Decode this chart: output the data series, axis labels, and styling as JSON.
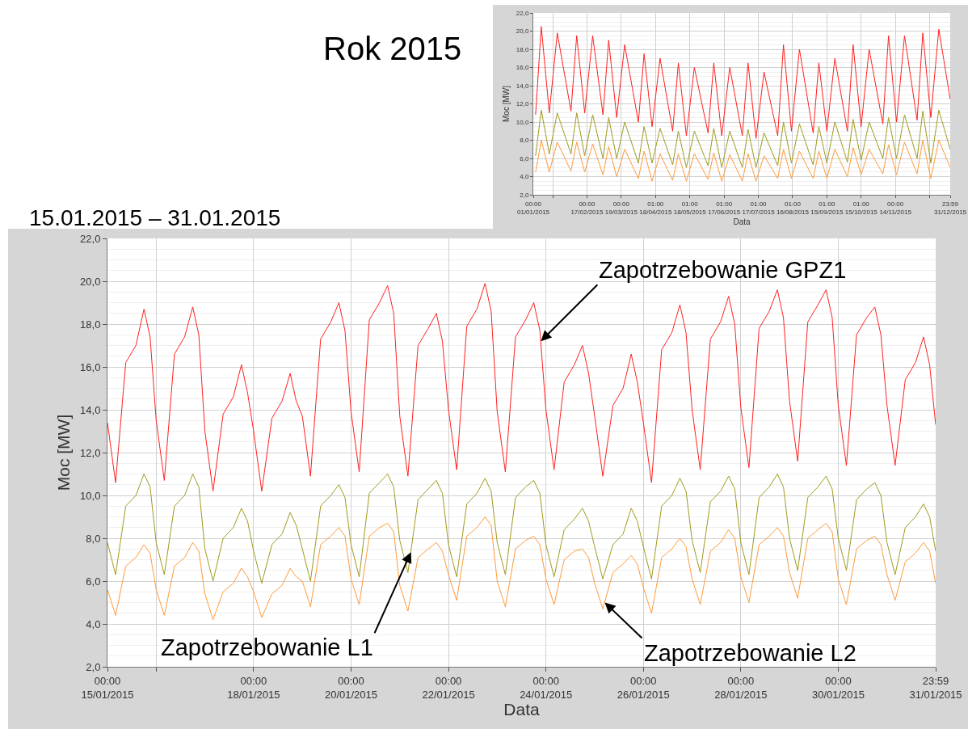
{
  "chart_data": [
    {
      "type": "line",
      "title": "Rok 2015",
      "xlabel": "Data",
      "ylabel": "Moc [MW]",
      "grid": true,
      "marker": "none",
      "line_style": "solid",
      "xlim": [
        "2015-01-01",
        "2015-12-31T23:59"
      ],
      "xticks": [
        {
          "value": "2015-01-01",
          "label": "00:00\n01/01/2015"
        },
        {
          "value": "2015-01-18",
          "label": null
        },
        {
          "value": "2015-02-17",
          "label": "00:00\n17/02/2015"
        },
        {
          "value": "2015-03-19",
          "label": "00:00\n19/03/2015"
        },
        {
          "value": "2015-04-18T01:00",
          "label": "01:00\n18/04/2015"
        },
        {
          "value": "2015-05-18T01:00",
          "label": "01:00\n18/05/2015"
        },
        {
          "value": "2015-06-17T01:00",
          "label": "01:00\n17/06/2015"
        },
        {
          "value": "2015-07-17T01:00",
          "label": "01:00\n17/07/2015"
        },
        {
          "value": "2015-08-16T01:00",
          "label": "01:00\n16/08/2015"
        },
        {
          "value": "2015-09-15T01:00",
          "label": "01:00\n15/09/2015"
        },
        {
          "value": "2015-10-15T01:00",
          "label": "01:00\n15/10/2015"
        },
        {
          "value": "2015-11-14",
          "label": "00:00\n14/11/2015"
        },
        {
          "value": "2015-12-14",
          "label": null
        },
        {
          "value": "2015-12-31T23:59",
          "label": "23:59\n31/12/2015"
        }
      ],
      "ylim": [
        2,
        22
      ],
      "yticks": [
        {
          "value": 2,
          "label": "2,0"
        },
        {
          "value": 4,
          "label": "4,0"
        },
        {
          "value": 6,
          "label": "6,0"
        },
        {
          "value": 8,
          "label": "8,0"
        },
        {
          "value": 10,
          "label": "10,0"
        },
        {
          "value": 12,
          "label": "12,0"
        },
        {
          "value": 14,
          "label": "14,0"
        },
        {
          "value": 16,
          "label": "16,0"
        },
        {
          "value": 18,
          "label": "18,0"
        },
        {
          "value": 20,
          "label": "20,0"
        },
        {
          "value": 22,
          "label": "22,0"
        }
      ],
      "x": [
        "2015-01-03",
        "2015-01-08",
        "2015-01-15",
        "2015-01-22",
        "2015-02-03",
        "2015-02-08",
        "2015-02-15",
        "2015-02-22",
        "2015-03-03",
        "2015-03-08",
        "2015-03-15",
        "2015-03-22",
        "2015-04-03",
        "2015-04-08",
        "2015-04-15",
        "2015-04-22",
        "2015-05-03",
        "2015-05-08",
        "2015-05-15",
        "2015-05-22",
        "2015-06-03",
        "2015-06-08",
        "2015-06-15",
        "2015-06-22",
        "2015-07-03",
        "2015-07-08",
        "2015-07-15",
        "2015-07-22",
        "2015-08-03",
        "2015-08-08",
        "2015-08-15",
        "2015-08-22",
        "2015-09-03",
        "2015-09-08",
        "2015-09-15",
        "2015-09-22",
        "2015-10-03",
        "2015-10-08",
        "2015-10-15",
        "2015-10-22",
        "2015-11-03",
        "2015-11-08",
        "2015-11-15",
        "2015-11-22",
        "2015-12-03",
        "2015-12-08",
        "2015-12-15",
        "2015-12-22",
        "2015-12-31T23:59"
      ],
      "series": [
        {
          "color": "#ff2020",
          "values": [
            10.8,
            20.5,
            11.0,
            19.8,
            11.2,
            19.5,
            11.0,
            19.5,
            10.8,
            19.0,
            10.5,
            18.5,
            10.0,
            17.5,
            9.5,
            17.0,
            9.0,
            16.5,
            8.5,
            16.0,
            8.8,
            16.5,
            8.5,
            16.0,
            8.5,
            16.5,
            8.2,
            15.5,
            8.5,
            18.5,
            9.0,
            18.0,
            8.8,
            16.5,
            9.0,
            17.0,
            9.0,
            18.5,
            9.5,
            18.0,
            9.8,
            19.5,
            10.0,
            19.5,
            10.2,
            19.8,
            10.5,
            20.2,
            12.5
          ]
        },
        {
          "color": "#a09a1e",
          "values": [
            6.3,
            11.3,
            6.5,
            11.0,
            6.5,
            11.0,
            6.3,
            10.8,
            6.0,
            10.5,
            6.0,
            10.0,
            5.5,
            9.5,
            5.5,
            9.3,
            5.3,
            9.0,
            5.0,
            9.0,
            5.2,
            9.3,
            5.0,
            9.0,
            5.0,
            9.2,
            5.0,
            8.8,
            5.2,
            10.0,
            5.5,
            9.8,
            5.3,
            9.5,
            5.5,
            10.0,
            5.6,
            10.3,
            5.8,
            10.0,
            6.0,
            10.5,
            6.0,
            10.8,
            6.0,
            11.2,
            5.5,
            11.3,
            7.0
          ]
        },
        {
          "color": "#ff9a3c",
          "values": [
            4.5,
            8.0,
            4.5,
            7.8,
            4.6,
            7.8,
            4.5,
            7.6,
            4.2,
            7.3,
            4.0,
            7.0,
            3.8,
            6.8,
            3.5,
            6.5,
            3.6,
            6.5,
            3.5,
            6.5,
            3.7,
            6.6,
            3.5,
            6.4,
            3.5,
            6.5,
            3.5,
            6.3,
            3.8,
            7.0,
            3.8,
            6.8,
            3.8,
            6.8,
            3.8,
            7.0,
            4.0,
            7.2,
            4.2,
            7.0,
            4.3,
            7.5,
            4.2,
            7.8,
            4.3,
            8.0,
            3.8,
            8.0,
            5.0
          ]
        }
      ]
    },
    {
      "type": "line",
      "title": "15.01.2015 – 31.01.2015",
      "xlabel": "Data",
      "ylabel": "Moc [MW]",
      "grid": true,
      "marker": "none",
      "line_style": "solid",
      "xlim": [
        "2015-01-15",
        "2015-01-31T23:59"
      ],
      "xticks": [
        {
          "value": "2015-01-15",
          "label": "00:00\n15/01/2015"
        },
        {
          "value": "2015-01-16",
          "label": null
        },
        {
          "value": "2015-01-18",
          "label": "00:00\n18/01/2015"
        },
        {
          "value": "2015-01-20",
          "label": "00:00\n20/01/2015"
        },
        {
          "value": "2015-01-22",
          "label": "00:00\n22/01/2015"
        },
        {
          "value": "2015-01-24",
          "label": "00:00\n24/01/2015"
        },
        {
          "value": "2015-01-26",
          "label": "00:00\n26/01/2015"
        },
        {
          "value": "2015-01-28",
          "label": "00:00\n28/01/2015"
        },
        {
          "value": "2015-01-30",
          "label": "00:00\n30/01/2015"
        },
        {
          "value": "2015-01-31T23:59",
          "label": "23:59\n31/01/2015"
        }
      ],
      "ylim": [
        2,
        22
      ],
      "yticks": [
        {
          "value": 2,
          "label": "2,0"
        },
        {
          "value": 4,
          "label": "4,0"
        },
        {
          "value": 6,
          "label": "6,0"
        },
        {
          "value": 8,
          "label": "8,0"
        },
        {
          "value": 10,
          "label": "10,0"
        },
        {
          "value": 12,
          "label": "12,0"
        },
        {
          "value": 14,
          "label": "14,0"
        },
        {
          "value": 16,
          "label": "16,0"
        },
        {
          "value": 18,
          "label": "18,0"
        },
        {
          "value": 20,
          "label": "20,0"
        },
        {
          "value": 22,
          "label": "22,0"
        }
      ],
      "x": [
        "2015-01-15T00:00",
        "2015-01-15T04:00",
        "2015-01-15T09:00",
        "2015-01-15T14:00",
        "2015-01-15T18:00",
        "2015-01-15T21:00",
        "2015-01-16T00:00",
        "2015-01-16T04:00",
        "2015-01-16T09:00",
        "2015-01-16T14:00",
        "2015-01-16T18:00",
        "2015-01-16T21:00",
        "2015-01-17T00:00",
        "2015-01-17T04:00",
        "2015-01-17T09:00",
        "2015-01-17T14:00",
        "2015-01-17T18:00",
        "2015-01-17T21:00",
        "2015-01-18T00:00",
        "2015-01-18T04:00",
        "2015-01-18T09:00",
        "2015-01-18T14:00",
        "2015-01-18T18:00",
        "2015-01-18T21:00",
        "2015-01-19T00:00",
        "2015-01-19T04:00",
        "2015-01-19T09:00",
        "2015-01-19T14:00",
        "2015-01-19T18:00",
        "2015-01-19T21:00",
        "2015-01-20T00:00",
        "2015-01-20T04:00",
        "2015-01-20T09:00",
        "2015-01-20T14:00",
        "2015-01-20T18:00",
        "2015-01-20T21:00",
        "2015-01-21T00:00",
        "2015-01-21T04:00",
        "2015-01-21T09:00",
        "2015-01-21T14:00",
        "2015-01-21T18:00",
        "2015-01-21T21:00",
        "2015-01-22T00:00",
        "2015-01-22T04:00",
        "2015-01-22T09:00",
        "2015-01-22T14:00",
        "2015-01-22T18:00",
        "2015-01-22T21:00",
        "2015-01-23T00:00",
        "2015-01-23T04:00",
        "2015-01-23T09:00",
        "2015-01-23T14:00",
        "2015-01-23T18:00",
        "2015-01-23T21:00",
        "2015-01-24T00:00",
        "2015-01-24T04:00",
        "2015-01-24T09:00",
        "2015-01-24T14:00",
        "2015-01-24T18:00",
        "2015-01-24T21:00",
        "2015-01-25T00:00",
        "2015-01-25T04:00",
        "2015-01-25T09:00",
        "2015-01-25T14:00",
        "2015-01-25T18:00",
        "2015-01-25T21:00",
        "2015-01-26T00:00",
        "2015-01-26T04:00",
        "2015-01-26T09:00",
        "2015-01-26T14:00",
        "2015-01-26T18:00",
        "2015-01-26T21:00",
        "2015-01-27T00:00",
        "2015-01-27T04:00",
        "2015-01-27T09:00",
        "2015-01-27T14:00",
        "2015-01-27T18:00",
        "2015-01-27T21:00",
        "2015-01-28T00:00",
        "2015-01-28T04:00",
        "2015-01-28T09:00",
        "2015-01-28T14:00",
        "2015-01-28T18:00",
        "2015-01-28T21:00",
        "2015-01-29T00:00",
        "2015-01-29T04:00",
        "2015-01-29T09:00",
        "2015-01-29T14:00",
        "2015-01-29T18:00",
        "2015-01-29T21:00",
        "2015-01-30T00:00",
        "2015-01-30T04:00",
        "2015-01-30T09:00",
        "2015-01-30T14:00",
        "2015-01-30T18:00",
        "2015-01-30T21:00",
        "2015-01-31T00:00",
        "2015-01-31T04:00",
        "2015-01-31T09:00",
        "2015-01-31T14:00",
        "2015-01-31T18:00",
        "2015-01-31T21:00",
        "2015-01-31T23:59"
      ],
      "series": [
        {
          "color": "#ff2020",
          "values": [
            13.4,
            10.6,
            16.2,
            17.0,
            18.7,
            17.4,
            13.5,
            10.7,
            16.6,
            17.4,
            18.8,
            17.5,
            13.0,
            10.2,
            13.8,
            14.6,
            16.1,
            14.8,
            13.0,
            10.2,
            13.6,
            14.4,
            15.7,
            14.4,
            13.7,
            10.9,
            17.3,
            18.1,
            19.0,
            17.7,
            13.9,
            11.1,
            18.2,
            19.0,
            19.8,
            18.5,
            13.7,
            10.9,
            17.0,
            17.8,
            18.5,
            17.2,
            14.0,
            11.2,
            17.9,
            18.7,
            19.9,
            18.6,
            13.9,
            11.1,
            17.4,
            18.2,
            19.0,
            17.7,
            14.0,
            11.2,
            15.3,
            16.1,
            17.0,
            15.7,
            13.7,
            10.9,
            14.2,
            15.0,
            16.6,
            15.3,
            13.4,
            10.6,
            16.8,
            17.6,
            18.9,
            17.6,
            14.0,
            11.2,
            17.3,
            18.1,
            19.3,
            18.0,
            14.1,
            11.3,
            17.8,
            18.6,
            19.6,
            18.3,
            14.4,
            11.6,
            18.1,
            18.9,
            19.6,
            18.3,
            14.2,
            11.4,
            17.5,
            18.3,
            18.8,
            17.5,
            14.2,
            11.4,
            15.4,
            16.2,
            17.4,
            16.1,
            13.3
          ]
        },
        {
          "color": "#a09a1e",
          "values": [
            7.8,
            6.3,
            9.5,
            10.0,
            11.0,
            10.4,
            7.8,
            6.3,
            9.5,
            10.0,
            11.0,
            10.4,
            7.5,
            6.0,
            8.0,
            8.5,
            9.4,
            8.8,
            7.4,
            5.9,
            7.7,
            8.2,
            9.2,
            8.6,
            7.5,
            6.0,
            9.5,
            10.0,
            10.5,
            9.9,
            7.7,
            6.2,
            10.1,
            10.6,
            11.0,
            10.4,
            7.9,
            6.4,
            9.8,
            10.3,
            10.7,
            10.1,
            7.7,
            6.2,
            9.6,
            10.1,
            10.8,
            10.2,
            7.8,
            6.3,
            9.9,
            10.4,
            10.7,
            10.1,
            7.7,
            6.2,
            8.4,
            8.9,
            9.4,
            8.8,
            7.6,
            6.1,
            7.7,
            8.2,
            9.4,
            8.8,
            7.6,
            6.1,
            9.5,
            10.0,
            10.8,
            10.2,
            7.9,
            6.4,
            9.7,
            10.2,
            10.9,
            10.3,
            7.8,
            6.3,
            9.9,
            10.4,
            11.0,
            10.4,
            8.0,
            6.5,
            9.9,
            10.4,
            10.9,
            10.3,
            8.0,
            6.5,
            9.8,
            10.3,
            10.6,
            10.0,
            7.8,
            6.3,
            8.5,
            9.0,
            9.6,
            9.0,
            7.4
          ]
        },
        {
          "color": "#ff9a3c",
          "values": [
            5.6,
            4.4,
            6.7,
            7.1,
            7.7,
            7.3,
            5.6,
            4.4,
            6.7,
            7.1,
            7.8,
            7.4,
            5.4,
            4.2,
            5.5,
            5.9,
            6.6,
            6.2,
            5.5,
            4.3,
            5.4,
            5.8,
            6.6,
            6.2,
            6.0,
            4.8,
            7.7,
            8.1,
            8.5,
            8.1,
            6.1,
            4.9,
            8.1,
            8.5,
            8.7,
            8.3,
            5.8,
            4.6,
            7.1,
            7.5,
            7.8,
            7.4,
            6.3,
            5.1,
            8.1,
            8.5,
            9.0,
            8.6,
            6.0,
            4.8,
            7.5,
            7.9,
            8.1,
            7.7,
            6.1,
            4.9,
            7.0,
            7.4,
            7.5,
            7.1,
            5.9,
            4.7,
            6.4,
            6.8,
            7.2,
            6.8,
            5.7,
            4.5,
            7.1,
            7.5,
            8.0,
            7.6,
            6.1,
            4.9,
            7.4,
            7.8,
            8.4,
            8.0,
            6.2,
            5.0,
            7.7,
            8.1,
            8.5,
            8.1,
            6.4,
            5.2,
            8.0,
            8.4,
            8.7,
            8.3,
            6.1,
            4.9,
            7.5,
            7.9,
            8.1,
            7.7,
            6.3,
            5.1,
            6.9,
            7.3,
            7.8,
            7.4,
            5.9
          ]
        }
      ],
      "annotations": [
        {
          "text": "Zapotrzebowanie GPZ1",
          "x": "2015-01-23T21:30",
          "y": 17.2
        },
        {
          "text": "Zapotrzebowanie L1",
          "x": "2015-01-21T05:30",
          "y": 7.35
        },
        {
          "text": "Zapotrzebowanie L2",
          "x": "2015-01-25T05:00",
          "y": 5.0
        }
      ]
    }
  ]
}
